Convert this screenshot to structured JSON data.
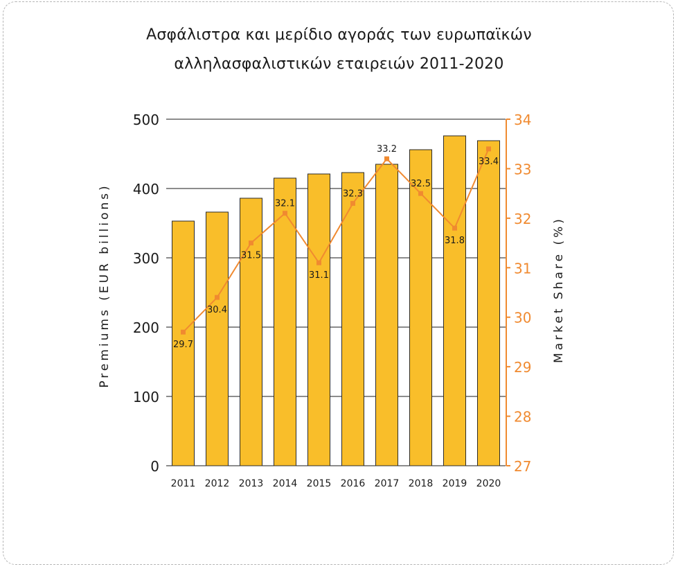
{
  "colors": {
    "bar": "#F9BE2A",
    "bar_stroke": "#2a2a2a",
    "line": "#F08A30",
    "right_axis": "#F08A30",
    "text": "#1a1a1a"
  },
  "chart_data": {
    "type": "bar",
    "title": [
      "Ασφάλιστρα και μερίδιο αγοράς των ευρωπαϊκών",
      "αλληλασφαλιστικών εταιρειών  2011-2020"
    ],
    "categories": [
      "2011",
      "2012",
      "2013",
      "2014",
      "2015",
      "2016",
      "2017",
      "2018",
      "2019",
      "2020"
    ],
    "series": [
      {
        "axis": "left",
        "type": "bar",
        "values": [
          353,
          366,
          386,
          415,
          421,
          423,
          435,
          456,
          476,
          469
        ]
      },
      {
        "axis": "right",
        "type": "line",
        "values": [
          29.7,
          30.4,
          31.5,
          32.1,
          31.1,
          32.3,
          33.2,
          32.5,
          31.8,
          33.4
        ],
        "labels": [
          "29.7",
          "30.4",
          "31.5",
          "32.1",
          "31.1",
          "32.3",
          "33.2",
          "32.5",
          "31.8",
          "33.4"
        ]
      }
    ],
    "ylabel": "Premiums (EUR billions)",
    "y2label": "Market Share (%)",
    "ylim": [
      0,
      500
    ],
    "y2lim": [
      27,
      34
    ],
    "yticks": [
      "0",
      "100",
      "200",
      "300",
      "400",
      "500"
    ],
    "y2ticks": [
      "27",
      "28",
      "29",
      "30",
      "31",
      "32",
      "33",
      "34"
    ],
    "grid": true
  }
}
